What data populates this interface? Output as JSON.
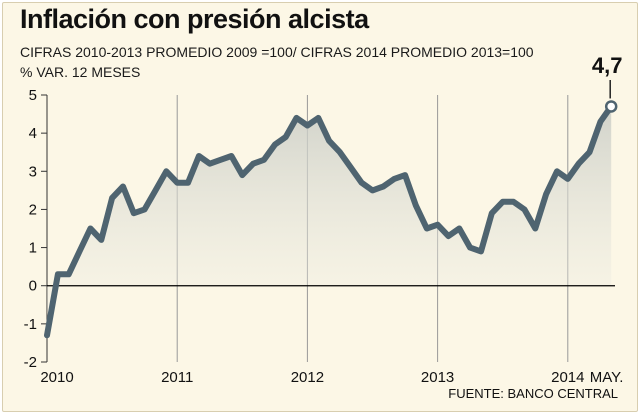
{
  "title": "Inflación con presión alcista",
  "subtitle": "CIFRAS 2010-2013 PROMEDIO 2009 =100/  CIFRAS 2014 PROMEDIO 2013=100",
  "ylabel": "% VAR. 12 MESES",
  "source": "FUENTE: BANCO CENTRAL",
  "colors": {
    "background": "#fcf7e6",
    "line": "#4f6470",
    "grid": "#999999",
    "zero_line": "#000000"
  },
  "chart_data": {
    "type": "line",
    "title": "Inflación con presión alcista",
    "ylabel": "% VAR. 12 MESES",
    "ylim": [
      -2,
      5
    ],
    "y_ticks": [
      -2,
      -1,
      0,
      1,
      2,
      3,
      4,
      5
    ],
    "x_ticks": [
      "2010",
      "2011",
      "2012",
      "2013",
      "2014"
    ],
    "last_point_label": "MAY.",
    "last_value_label": "4,7",
    "series": [
      {
        "x": [
          "2010-01",
          "2010-02",
          "2010-03",
          "2010-04",
          "2010-05",
          "2010-06",
          "2010-07",
          "2010-08",
          "2010-09",
          "2010-10",
          "2010-11",
          "2010-12",
          "2011-01",
          "2011-02",
          "2011-03",
          "2011-04",
          "2011-05",
          "2011-06",
          "2011-07",
          "2011-08",
          "2011-09",
          "2011-10",
          "2011-11",
          "2011-12",
          "2012-01",
          "2012-02",
          "2012-03",
          "2012-04",
          "2012-05",
          "2012-06",
          "2012-07",
          "2012-08",
          "2012-09",
          "2012-10",
          "2012-11",
          "2012-12",
          "2013-01",
          "2013-02",
          "2013-03",
          "2013-04",
          "2013-05",
          "2013-06",
          "2013-07",
          "2013-08",
          "2013-09",
          "2013-10",
          "2013-11",
          "2013-12",
          "2014-01",
          "2014-02",
          "2014-03",
          "2014-04",
          "2014-05"
        ],
        "values": [
          -1.3,
          0.3,
          0.3,
          0.9,
          1.5,
          1.2,
          2.3,
          2.6,
          1.9,
          2.0,
          2.5,
          3.0,
          2.7,
          2.7,
          3.4,
          3.2,
          3.3,
          3.4,
          2.9,
          3.2,
          3.3,
          3.7,
          3.9,
          4.4,
          4.2,
          4.4,
          3.8,
          3.5,
          3.1,
          2.7,
          2.5,
          2.6,
          2.8,
          2.9,
          2.1,
          1.5,
          1.6,
          1.3,
          1.5,
          1.0,
          0.9,
          1.9,
          2.2,
          2.2,
          2.0,
          1.5,
          2.4,
          3.0,
          2.8,
          3.2,
          3.5,
          4.3,
          4.7
        ]
      }
    ]
  }
}
